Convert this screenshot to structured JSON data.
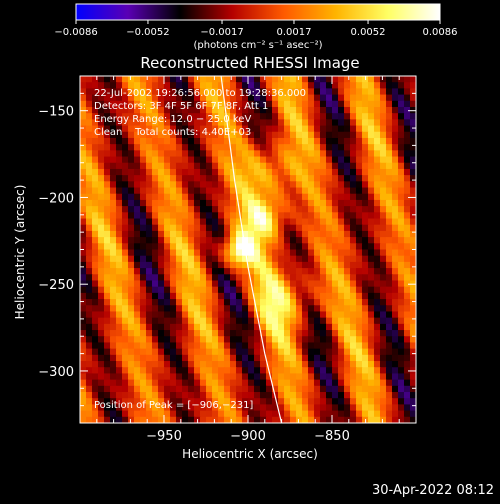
{
  "chart_data": {
    "type": "heatmap",
    "title": "Reconstructed RHESSI Image",
    "xlabel": "Heliocentric X (arcsec)",
    "ylabel": "Heliocentric Y (arcsec)",
    "xlim": [
      -1000,
      -800
    ],
    "ylim": [
      -330,
      -130
    ],
    "x_ticks": [
      -950,
      -900,
      -850
    ],
    "x_tick_labels": [
      "−950",
      "−900",
      "−850"
    ],
    "y_ticks": [
      -150,
      -200,
      -250,
      -300
    ],
    "y_tick_labels": [
      "−150",
      "−200",
      "−250",
      "−300"
    ],
    "colorbar": {
      "range": [
        -0.0086,
        0.0086
      ],
      "ticks": [
        -0.0086,
        -0.0052,
        -0.0017,
        0.0017,
        0.0052,
        0.0086
      ],
      "tick_labels": [
        "−0.0086",
        "−0.0052",
        "−0.0017",
        "0.0017",
        "0.0052",
        "0.0086"
      ],
      "unit_label": "(photons cm⁻² s⁻¹ asec⁻²)",
      "colormap": [
        "#0000ff",
        "#5a00b4",
        "#000000",
        "#b40000",
        "#ff5a00",
        "#ffb400",
        "#ffff64",
        "#ffffff"
      ]
    },
    "annotations": {
      "time_range": "22-Jul-2002 19:26:56.000 to 19:28:36.000",
      "detectors": "Detectors: 3F 4F 5F 6F 7F 8F, Att 1",
      "energy": "Energy Range: 12.0 − 25.0 keV",
      "clean": "Clean    Total counts: 4.40E+03",
      "peak": "Position of Peak = [−906,−231]"
    },
    "peak": {
      "x": -906,
      "y": -231,
      "value": 0.0086
    },
    "secondary_source": {
      "x": -890,
      "y": -212,
      "value": 0.0062
    },
    "limb_curve": [
      [
        -916,
        -130
      ],
      [
        -908,
        -190
      ],
      [
        -900,
        -240
      ],
      [
        -890,
        -290
      ],
      [
        -880,
        -330
      ]
    ],
    "grid": false
  },
  "footer": {
    "timestamp": "30-Apr-2022 08:12"
  }
}
